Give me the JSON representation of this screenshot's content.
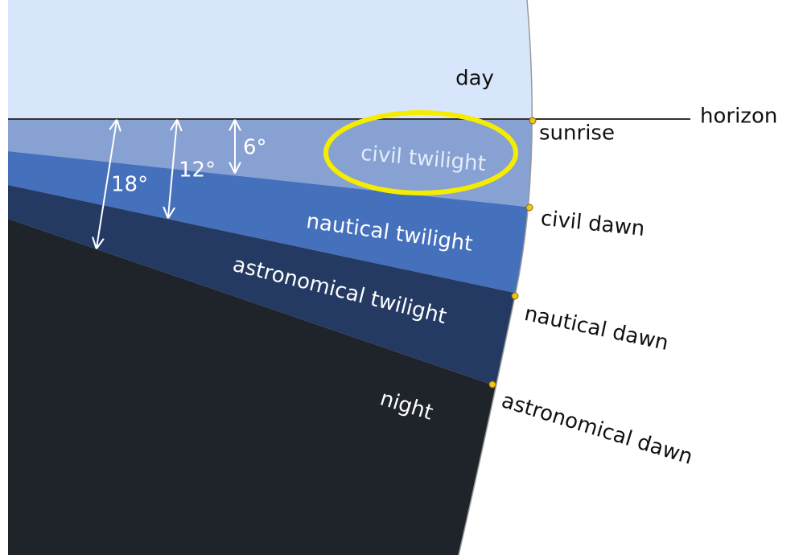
{
  "labels": {
    "day": "day",
    "horizon": "horizon",
    "sunrise": "sunrise",
    "civil_twilight": "civil twilight",
    "civil_dawn": "civil dawn",
    "nautical_twilight": "nautical twilight",
    "nautical_dawn": "nautical dawn",
    "astronomical_twilight": "astronomical twilight",
    "astronomical_dawn": "astronomical dawn",
    "night": "night"
  },
  "angles": {
    "six": "6°",
    "twelve": "12°",
    "eighteen": "18°"
  }
}
